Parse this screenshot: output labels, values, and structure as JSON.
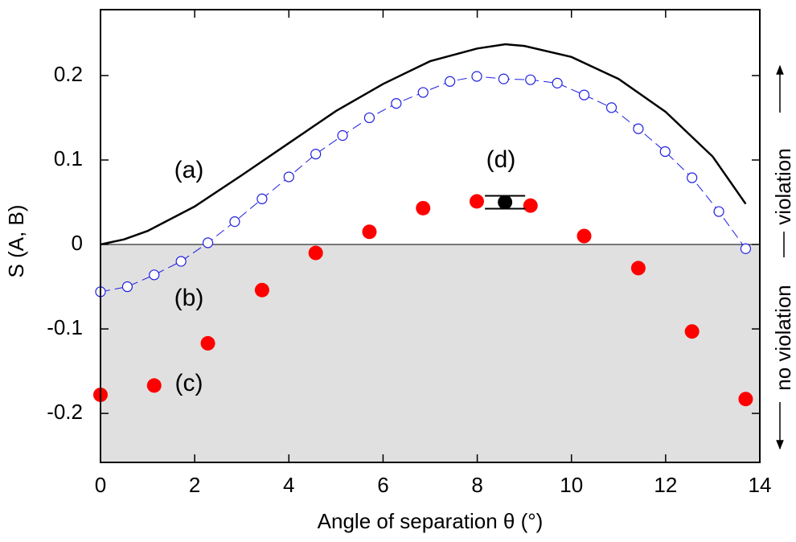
{
  "chart_data": {
    "type": "scatter",
    "x_label": "Angle of separation θ (°)",
    "y_label": "S (A, B)",
    "xlim": [
      0,
      14
    ],
    "ylim": [
      -0.258,
      0.278
    ],
    "xticks": [
      0,
      2,
      4,
      6,
      8,
      10,
      12,
      14
    ],
    "yticks": [
      -0.2,
      -0.1,
      0,
      0.1,
      0.2
    ],
    "shade_below_zero": "#e0e0e0",
    "series": [
      {
        "label": "(a)",
        "style": "line",
        "color": "#000000",
        "x": [
          0,
          0.5,
          1,
          2,
          3,
          4,
          5,
          6,
          7,
          8,
          8.6,
          9,
          10,
          11,
          12,
          13,
          13.7
        ],
        "values": [
          0,
          0.006,
          0.016,
          0.045,
          0.082,
          0.12,
          0.158,
          0.19,
          0.217,
          0.232,
          0.237,
          0.235,
          0.222,
          0.196,
          0.157,
          0.104,
          0.048
        ]
      },
      {
        "label": "(b)",
        "style": "dashed-open",
        "color": "#1f1fe0",
        "x": [
          0,
          0.57,
          1.14,
          1.71,
          2.28,
          2.85,
          3.43,
          4.0,
          4.57,
          5.14,
          5.71,
          6.28,
          6.85,
          7.42,
          7.99,
          8.56,
          9.13,
          9.7,
          10.27,
          10.85,
          11.42,
          11.99,
          12.56,
          13.13,
          13.7
        ],
        "values": [
          -0.056,
          -0.05,
          -0.036,
          -0.02,
          0.002,
          0.027,
          0.054,
          0.08,
          0.107,
          0.129,
          0.15,
          0.167,
          0.18,
          0.193,
          0.199,
          0.196,
          0.195,
          0.191,
          0.177,
          0.162,
          0.137,
          0.11,
          0.079,
          0.039,
          -0.005
        ]
      },
      {
        "label": "(c)",
        "style": "dots",
        "color": "#ff0000",
        "x": [
          0,
          1.14,
          2.28,
          3.43,
          4.57,
          5.71,
          6.85,
          7.99,
          9.13,
          10.27,
          11.42,
          12.56,
          13.7
        ],
        "values": [
          -0.178,
          -0.167,
          -0.117,
          -0.054,
          -0.01,
          0.015,
          0.043,
          0.051,
          0.046,
          0.01,
          -0.028,
          -0.103,
          -0.183
        ]
      },
      {
        "label": "(d)",
        "style": "errorbar",
        "color": "#000000",
        "x": [
          8.59
        ],
        "values": [
          0.05
        ],
        "errors": [
          0.0076
        ]
      }
    ],
    "annotations": [
      "violation",
      "no violation"
    ]
  }
}
